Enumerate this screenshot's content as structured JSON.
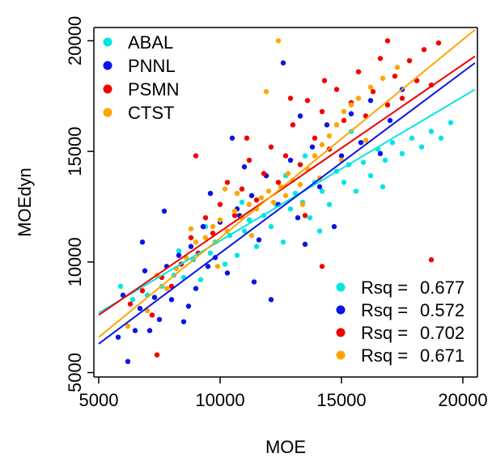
{
  "chart_data": {
    "type": "scatter",
    "xlabel": "MOE",
    "ylabel": "MOEdyn",
    "xlim": [
      4800,
      20600
    ],
    "ylim": [
      4800,
      20600
    ],
    "xticks": [
      5000,
      10000,
      15000,
      20000
    ],
    "yticks": [
      5000,
      10000,
      15000,
      20000
    ],
    "grid": false,
    "legend_placement": "top-left",
    "rsq_legend_placement": "bottom-right",
    "series": [
      {
        "name": "ABAL",
        "color": "#00e5e5",
        "rsq_label": "Rsq =",
        "rsq": "0.677",
        "fit": {
          "x": [
            5000,
            20500
          ],
          "y": [
            7700,
            17800
          ]
        },
        "points": [
          [
            5900,
            8900
          ],
          [
            6400,
            8300
          ],
          [
            7000,
            8500
          ],
          [
            7600,
            8900
          ],
          [
            8100,
            9400
          ],
          [
            8500,
            9300
          ],
          [
            8900,
            10100
          ],
          [
            9200,
            9200
          ],
          [
            9600,
            10400
          ],
          [
            9800,
            10900
          ],
          [
            10200,
            9900
          ],
          [
            10400,
            11200
          ],
          [
            10700,
            10300
          ],
          [
            11000,
            11400
          ],
          [
            11200,
            11900
          ],
          [
            11500,
            10700
          ],
          [
            11800,
            12100
          ],
          [
            12100,
            11600
          ],
          [
            12300,
            12600
          ],
          [
            12600,
            10900
          ],
          [
            12900,
            12400
          ],
          [
            13100,
            13100
          ],
          [
            13400,
            12700
          ],
          [
            13700,
            12000
          ],
          [
            13900,
            13600
          ],
          [
            14200,
            13200
          ],
          [
            14500,
            12600
          ],
          [
            14800,
            14100
          ],
          [
            15100,
            13600
          ],
          [
            15300,
            14400
          ],
          [
            15600,
            13200
          ],
          [
            15900,
            14500
          ],
          [
            16200,
            13900
          ],
          [
            16500,
            15100
          ],
          [
            16800,
            14600
          ],
          [
            17100,
            15400
          ],
          [
            17500,
            14900
          ],
          [
            17900,
            15600
          ],
          [
            18300,
            15200
          ],
          [
            18700,
            15900
          ],
          [
            19100,
            15600
          ],
          [
            19500,
            16300
          ],
          [
            9400,
            11600
          ],
          [
            10900,
            12700
          ],
          [
            12700,
            13900
          ],
          [
            14100,
            11400
          ],
          [
            15400,
            15900
          ],
          [
            16700,
            13400
          ],
          [
            8300,
            10500
          ],
          [
            13500,
            14800
          ]
        ]
      },
      {
        "name": "PNNL",
        "color": "#0a14e6",
        "rsq_label": "Rsq =",
        "rsq": "0.572",
        "fit": {
          "x": [
            5000,
            20500
          ],
          "y": [
            6300,
            19000
          ]
        },
        "points": [
          [
            5800,
            6600
          ],
          [
            6000,
            8500
          ],
          [
            6200,
            5500
          ],
          [
            6500,
            6900
          ],
          [
            6700,
            7900
          ],
          [
            6900,
            9600
          ],
          [
            7100,
            6900
          ],
          [
            7300,
            8400
          ],
          [
            7500,
            7400
          ],
          [
            7800,
            9800
          ],
          [
            8000,
            8300
          ],
          [
            8300,
            10300
          ],
          [
            8500,
            7300
          ],
          [
            8800,
            10700
          ],
          [
            9000,
            8800
          ],
          [
            9300,
            11600
          ],
          [
            9500,
            9800
          ],
          [
            9800,
            10200
          ],
          [
            10000,
            11800
          ],
          [
            10300,
            9500
          ],
          [
            10500,
            15600
          ],
          [
            10700,
            12400
          ],
          [
            11000,
            14300
          ],
          [
            11300,
            13000
          ],
          [
            11600,
            11000
          ],
          [
            11900,
            13900
          ],
          [
            12100,
            8300
          ],
          [
            12400,
            12600
          ],
          [
            12600,
            19000
          ],
          [
            12900,
            14600
          ],
          [
            13200,
            12000
          ],
          [
            13500,
            10800
          ],
          [
            13800,
            15200
          ],
          [
            14100,
            13400
          ],
          [
            14400,
            16200
          ],
          [
            14700,
            11600
          ],
          [
            15000,
            14800
          ],
          [
            15400,
            16700
          ],
          [
            15800,
            15400
          ],
          [
            16200,
            17300
          ],
          [
            16600,
            14900
          ],
          [
            17000,
            16400
          ],
          [
            17500,
            17800
          ],
          [
            6800,
            10900
          ],
          [
            7700,
            12300
          ],
          [
            9600,
            13100
          ],
          [
            11400,
            9100
          ],
          [
            13300,
            16600
          ],
          [
            10800,
            12100
          ],
          [
            8700,
            8000
          ]
        ]
      },
      {
        "name": "PSMN",
        "color": "#f00000",
        "rsq_label": "Rsq =",
        "rsq": "0.702",
        "fit": {
          "x": [
            5000,
            20500
          ],
          "y": [
            7600,
            19300
          ]
        },
        "points": [
          [
            6300,
            8100
          ],
          [
            6800,
            8700
          ],
          [
            7200,
            7600
          ],
          [
            7600,
            9300
          ],
          [
            8000,
            8900
          ],
          [
            8400,
            9900
          ],
          [
            8800,
            11100
          ],
          [
            9100,
            10400
          ],
          [
            9400,
            12000
          ],
          [
            9700,
            11300
          ],
          [
            10000,
            12600
          ],
          [
            10300,
            13600
          ],
          [
            10600,
            12100
          ],
          [
            10900,
            13300
          ],
          [
            11200,
            14600
          ],
          [
            11500,
            12800
          ],
          [
            11800,
            14000
          ],
          [
            12100,
            15200
          ],
          [
            12400,
            13600
          ],
          [
            12700,
            14800
          ],
          [
            13000,
            16200
          ],
          [
            13300,
            14400
          ],
          [
            13600,
            17300
          ],
          [
            13900,
            15600
          ],
          [
            14200,
            16800
          ],
          [
            14500,
            15100
          ],
          [
            14800,
            17800
          ],
          [
            15100,
            16400
          ],
          [
            15400,
            17200
          ],
          [
            15700,
            18600
          ],
          [
            16000,
            16600
          ],
          [
            16300,
            17700
          ],
          [
            16600,
            19200
          ],
          [
            16900,
            17100
          ],
          [
            17200,
            18400
          ],
          [
            17500,
            17400
          ],
          [
            17800,
            19100
          ],
          [
            18100,
            18200
          ],
          [
            18400,
            19600
          ],
          [
            18700,
            18000
          ],
          [
            19000,
            19900
          ],
          [
            9000,
            14800
          ],
          [
            11100,
            15600
          ],
          [
            12900,
            17400
          ],
          [
            14300,
            18200
          ],
          [
            16900,
            20000
          ],
          [
            18700,
            10100
          ],
          [
            14200,
            9800
          ],
          [
            7400,
            5800
          ],
          [
            13500,
            12100
          ]
        ]
      },
      {
        "name": "CTST",
        "color": "#ffa500",
        "rsq_label": "Rsq =",
        "rsq": "0.671",
        "fit": {
          "x": [
            5000,
            20500
          ],
          "y": [
            6600,
            20500
          ]
        },
        "points": [
          [
            6200,
            7100
          ],
          [
            7000,
            7800
          ],
          [
            7800,
            8800
          ],
          [
            8200,
            9700
          ],
          [
            8600,
            10200
          ],
          [
            9000,
            10900
          ],
          [
            9400,
            11100
          ],
          [
            9700,
            11600
          ],
          [
            10000,
            11900
          ],
          [
            10300,
            11400
          ],
          [
            10600,
            12300
          ],
          [
            10900,
            12000
          ],
          [
            11200,
            12600
          ],
          [
            11500,
            12400
          ],
          [
            11700,
            12900
          ],
          [
            12000,
            13200
          ],
          [
            12200,
            12700
          ],
          [
            12500,
            13400
          ],
          [
            12700,
            13000
          ],
          [
            13000,
            13700
          ],
          [
            13300,
            13500
          ],
          [
            13600,
            14200
          ],
          [
            13900,
            14800
          ],
          [
            14200,
            15300
          ],
          [
            14500,
            15700
          ],
          [
            14800,
            16200
          ],
          [
            15100,
            16800
          ],
          [
            15400,
            17100
          ],
          [
            15700,
            17400
          ],
          [
            16200,
            17900
          ],
          [
            16700,
            18300
          ],
          [
            17300,
            18800
          ],
          [
            8800,
            11500
          ],
          [
            10700,
            13100
          ],
          [
            12400,
            20000
          ],
          [
            11900,
            17700
          ],
          [
            9900,
            9800
          ],
          [
            11300,
            11200
          ],
          [
            13400,
            12600
          ],
          [
            15000,
            14600
          ],
          [
            10200,
            13300
          ],
          [
            12800,
            14000
          ],
          [
            14100,
            13800
          ],
          [
            7400,
            9400
          ],
          [
            16000,
            15500
          ]
        ]
      }
    ]
  }
}
